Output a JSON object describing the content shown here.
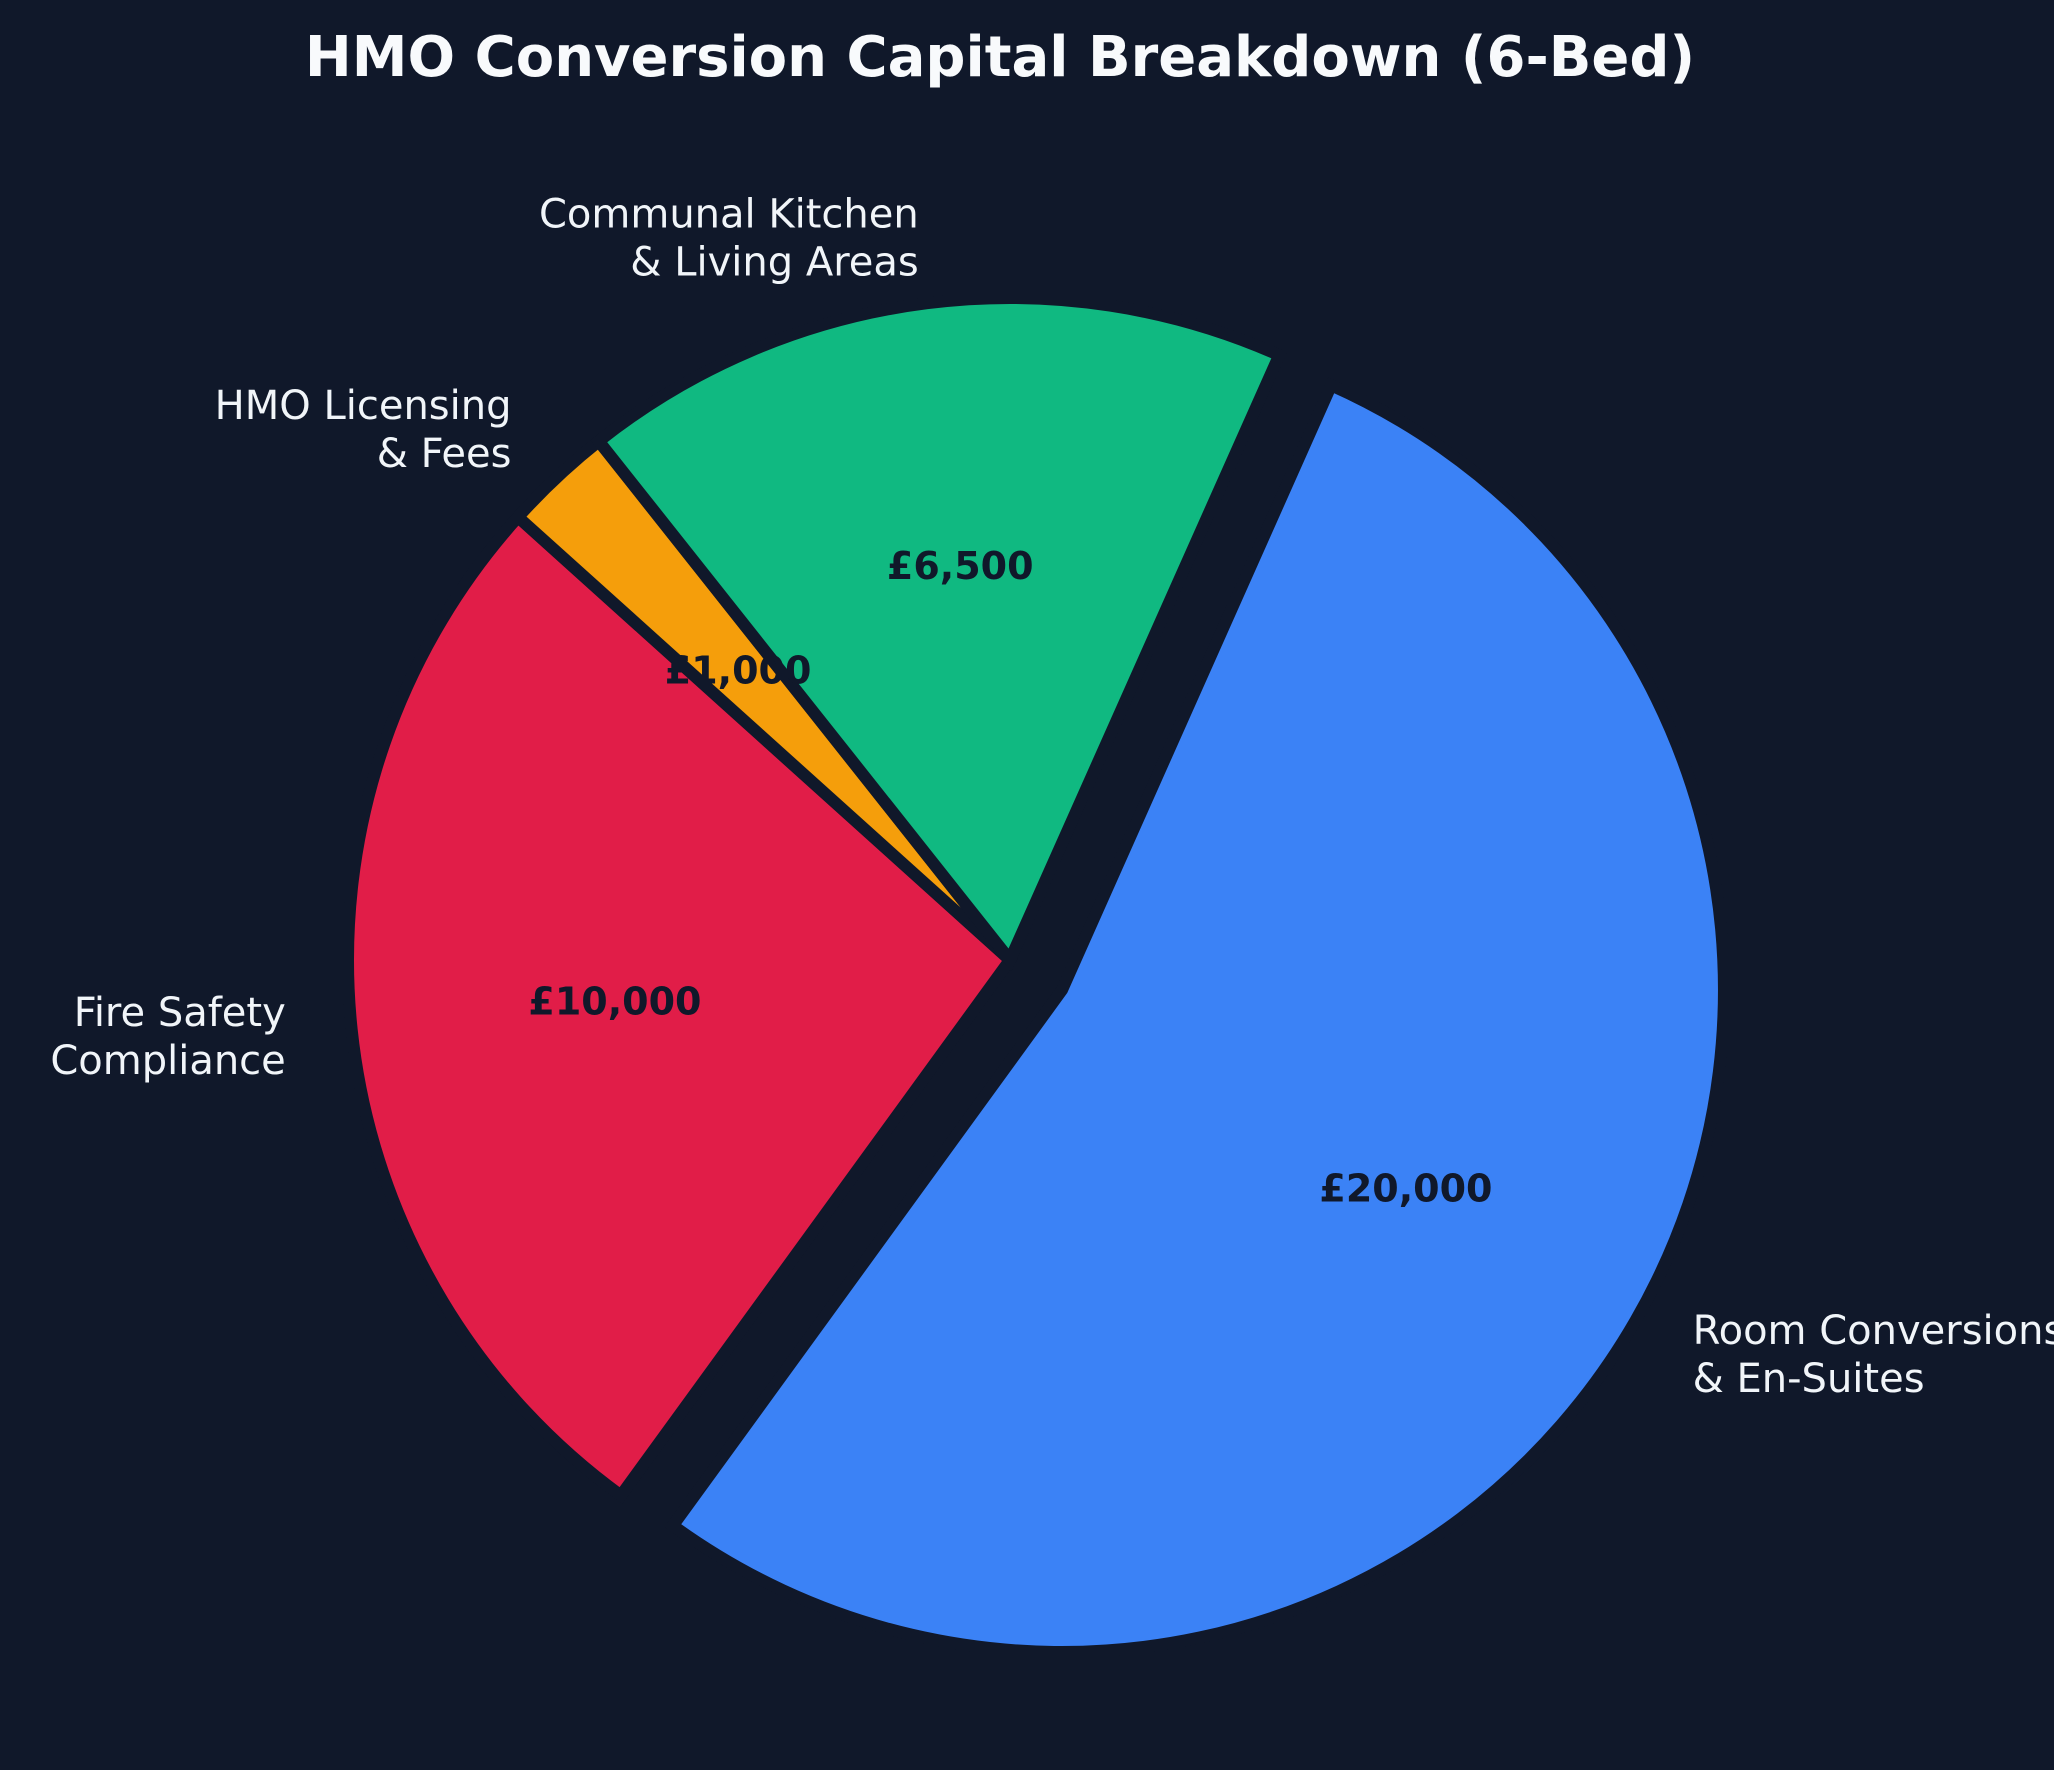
{
  "chart_data": {
    "type": "pie",
    "title": "HMO Conversion Capital Breakdown (6-Bed)",
    "slices": [
      {
        "label": "Room Conversions\n& En-Suites",
        "value": 20000,
        "value_label": "£20,000",
        "color": "#3b82f6",
        "exploded": true
      },
      {
        "label": "Fire Safety\nCompliance",
        "value": 10000,
        "value_label": "£10,000",
        "color": "#e11d48",
        "exploded": false
      },
      {
        "label": "HMO Licensing\n& Fees",
        "value": 1000,
        "value_label": "£1,000",
        "color": "#f59e0b",
        "exploded": false
      },
      {
        "label": "Communal Kitchen\n& Living Areas",
        "value": 6500,
        "value_label": "£6,500",
        "color": "#10b981",
        "exploded": false
      }
    ],
    "start_angle": 66,
    "direction": "clockwise",
    "legend": "none",
    "background": "#10182a",
    "edge_color": "#10182a"
  }
}
